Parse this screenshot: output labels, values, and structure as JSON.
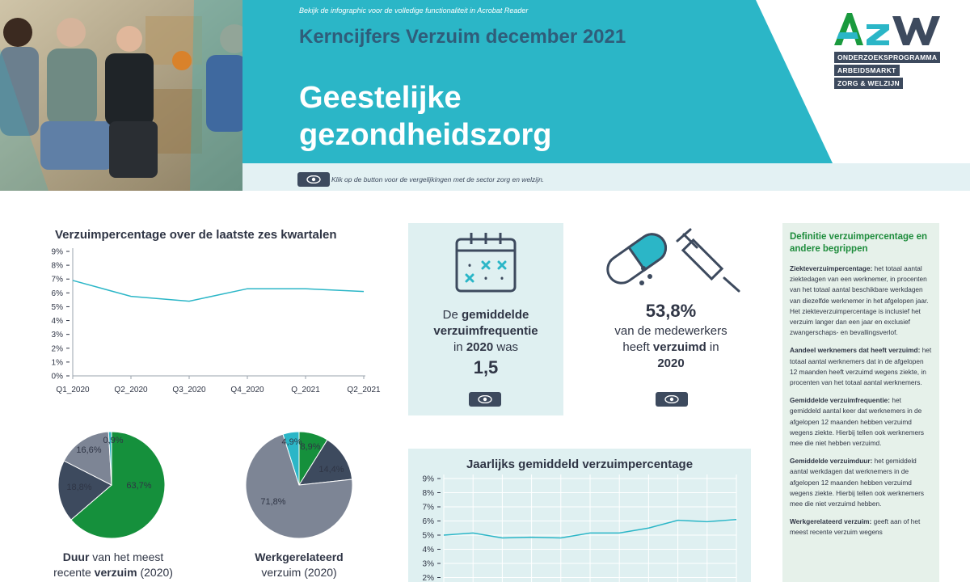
{
  "header": {
    "info_note": "Bekijk de infographic voor de volledige functionaliteit in Acrobat Reader",
    "kicker": "Kerncijfers Verzuim december 2021",
    "title_line1": "Geestelijke",
    "title_line2": "gezondheidszorg",
    "hint": "Klik op de button voor de vergelijkingen met de sector zorg en welzijn.",
    "colors": {
      "teal": "#2bb6c7",
      "light": "#e3f1f3",
      "navy": "#3d4a5e"
    }
  },
  "logo": {
    "text": "AZW",
    "tags": [
      "ONDERZOEKSPROGRAMMA",
      "ARBEIDSMARKT",
      "ZORG & WELZIJN"
    ]
  },
  "kpi_frequency": {
    "icon": "calendar-icon",
    "line1_pre": "De ",
    "line1_bold": "gemiddelde",
    "line2_bold": "verzuimfrequentie",
    "line3_pre": "in ",
    "line3_bold": "2020",
    "line3_post": " was",
    "value": "1,5"
  },
  "kpi_share": {
    "icon": "medicine-syringe-icon",
    "value": "53,8%",
    "line1": "van de medewerkers",
    "line2_pre": "heeft ",
    "line2_bold": "verzuimd",
    "line2_post": " in",
    "line3": "2020"
  },
  "pies": {
    "duration": {
      "caption_l1_bold": "Duur",
      "caption_l1": " van het meest",
      "caption_l2": "recente ",
      "caption_l2_bold": "verzuim",
      "caption_l2_post": " (2020)"
    },
    "work": {
      "caption_l1_bold": "Werkgerelateerd",
      "caption_l2": "verzuim (2020)"
    }
  },
  "sidebar": {
    "heading": "Definitie verzuimpercentage en andere begrippen",
    "defs": [
      {
        "term": "Ziekteverzuimpercentage:",
        "text": " het totaal aantal ziektedagen van een werknemer, in procenten van het totaal aantal beschikbare werkdagen van diezelfde werknemer in het afgelopen jaar. Het ziekteverzuimpercentage is inclusief het verzuim langer dan een jaar en exclusief zwangerschaps- en bevallingsverlof."
      },
      {
        "term": "Aandeel werknemers dat heeft verzuimd:",
        "text": " het totaal aantal werknemers dat in de afgelopen 12 maanden heeft verzuimd wegens ziekte, in procenten van het totaal aantal werknemers."
      },
      {
        "term": "Gemiddelde verzuimfrequentie:",
        "text": " het gemiddeld aantal keer dat werknemers in de afgelopen 12 maanden hebben verzuimd wegens ziekte. Hierbij tellen ook werknemers mee die niet hebben verzuimd."
      },
      {
        "term": "Gemiddelde verzuimduur:",
        "text": " het gemiddeld aantal werkdagen dat werknemers in de afgelopen 12 maanden hebben verzuimd wegens ziekte. Hierbij tellen ook werknemers mee die niet verzuimd hebben."
      },
      {
        "term": "Werkgerelateerd verzuim:",
        "text": " geeft aan of het meest recente verzuim wegens"
      }
    ]
  },
  "chart_data": [
    {
      "type": "line",
      "title": "Verzuimpercentage over de laatste zes kwartalen",
      "categories": [
        "Q1_2020",
        "Q2_2020",
        "Q3_2020",
        "Q4_2020",
        "Q_2021",
        "Q2_2021"
      ],
      "values": [
        6.9,
        5.75,
        5.4,
        6.3,
        6.3,
        6.1
      ],
      "yticks": [
        "0%",
        "1%",
        "2%",
        "3%",
        "4%",
        "5%",
        "6%",
        "7%",
        "8%",
        "9%"
      ],
      "ylim": [
        0,
        9
      ],
      "color": "#2bb6c7"
    },
    {
      "type": "pie",
      "labels": [
        "63,7%",
        "18,8%",
        "16,6%",
        "0,9%"
      ],
      "values": [
        63.7,
        18.8,
        16.6,
        0.9
      ],
      "colors": [
        "#15903c",
        "#3d4a5e",
        "#7d8595",
        "#2bb6c7"
      ]
    },
    {
      "type": "pie",
      "labels": [
        "8,9%",
        "14,4%",
        "71,8%",
        "4,9%"
      ],
      "values": [
        8.9,
        14.4,
        71.8,
        4.9
      ],
      "colors": [
        "#15903c",
        "#3d4a5e",
        "#7d8595",
        "#2bb6c7"
      ]
    },
    {
      "type": "line",
      "title": "Jaarlijks gemiddeld verzuimpercentage",
      "values": [
        5.0,
        5.15,
        4.8,
        4.85,
        4.8,
        5.15,
        5.15,
        5.5,
        6.05,
        5.95,
        6.1
      ],
      "yticks": [
        "2%",
        "3%",
        "4%",
        "5%",
        "6%",
        "7%",
        "8%",
        "9%"
      ],
      "ylim": [
        0,
        9
      ],
      "grid": true,
      "color": "#2bb6c7"
    }
  ]
}
